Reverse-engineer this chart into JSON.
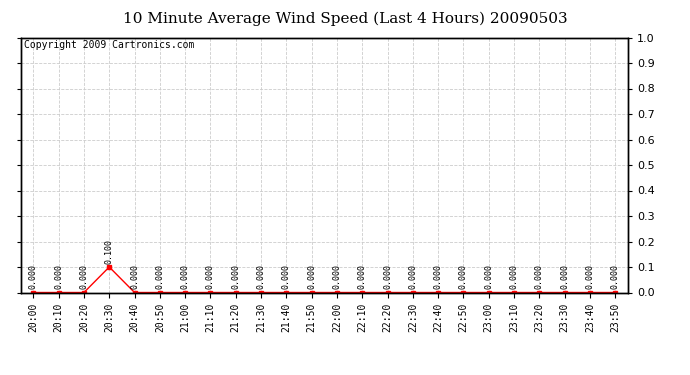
{
  "title": "10 Minute Average Wind Speed (Last 4 Hours) 20090503",
  "copyright": "Copyright 2009 Cartronics.com",
  "x_labels": [
    "20:00",
    "20:10",
    "20:20",
    "20:30",
    "20:40",
    "20:50",
    "21:00",
    "21:10",
    "21:20",
    "21:30",
    "21:40",
    "21:50",
    "22:00",
    "22:10",
    "22:20",
    "22:30",
    "22:40",
    "22:50",
    "23:00",
    "23:10",
    "23:20",
    "23:30",
    "23:40",
    "23:50"
  ],
  "y_values": [
    0.0,
    0.0,
    0.0,
    0.1,
    0.0,
    0.0,
    0.0,
    0.0,
    0.0,
    0.0,
    0.0,
    0.0,
    0.0,
    0.0,
    0.0,
    0.0,
    0.0,
    0.0,
    0.0,
    0.0,
    0.0,
    0.0,
    0.0,
    0.0
  ],
  "line_color": "#ff0000",
  "marker": "s",
  "marker_size": 2.5,
  "ylim": [
    0.0,
    1.0
  ],
  "yticks": [
    0.0,
    0.1,
    0.2,
    0.3,
    0.4,
    0.5,
    0.6,
    0.7,
    0.8,
    0.9,
    1.0
  ],
  "grid_color": "#cccccc",
  "grid_linestyle": "--",
  "bg_color": "#ffffff",
  "title_fontsize": 11,
  "copyright_fontsize": 7,
  "tick_fontsize": 7,
  "data_label_fontsize": 6
}
